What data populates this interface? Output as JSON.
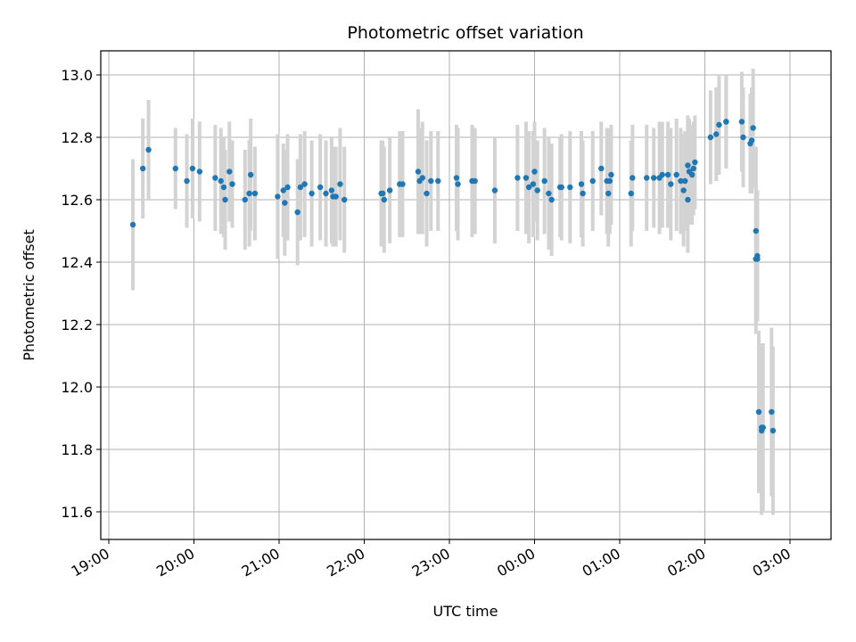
{
  "chart_data": {
    "type": "scatter",
    "title": "Photometric offset variation",
    "xlabel": "UTC time",
    "ylabel": "Photometric offset",
    "x_ticks": [
      "19:00",
      "20:00",
      "21:00",
      "22:00",
      "23:00",
      "00:00",
      "01:00",
      "02:00",
      "03:00"
    ],
    "y_ticks": [
      "11.6",
      "11.8",
      "12.0",
      "12.2",
      "12.4",
      "12.6",
      "12.8",
      "13.0"
    ],
    "ylim": [
      11.51,
      13.08
    ],
    "grid": true,
    "colors": {
      "points": "#1f77b4",
      "errorbars": "#d3d3d3",
      "grid": "#b0b0b0"
    },
    "series": [
      {
        "x": [
          "19:17",
          "19:24",
          "19:28",
          "19:47",
          "19:55",
          "19:59",
          "20:04",
          "20:15",
          "20:19",
          "20:21",
          "20:22",
          "20:25",
          "20:27",
          "20:36",
          "20:39",
          "20:40",
          "20:43",
          "20:59",
          "21:03",
          "21:04",
          "21:06",
          "21:13",
          "21:15",
          "21:18",
          "21:23",
          "21:29",
          "21:33",
          "21:37",
          "21:38",
          "21:40",
          "21:43",
          "21:46",
          "22:12",
          "22:13",
          "22:14",
          "22:18",
          "22:25",
          "22:27",
          "22:38",
          "22:39",
          "22:41",
          "22:44",
          "22:47",
          "22:52",
          "23:05",
          "23:06",
          "23:16",
          "23:18",
          "23:32",
          "23:48",
          "23:54",
          "23:56",
          "23:59",
          "00:00",
          "00:02",
          "00:07",
          "00:10",
          "00:12",
          "00:18",
          "00:19",
          "00:25",
          "00:33",
          "00:34",
          "00:41",
          "00:47",
          "00:51",
          "00:52",
          "00:53",
          "00:54",
          "01:08",
          "01:09",
          "01:19",
          "01:24",
          "01:28",
          "01:30",
          "01:34",
          "01:36",
          "01:40",
          "01:43",
          "01:45",
          "01:46",
          "01:48",
          "01:48",
          "01:49",
          "01:51",
          "01:52",
          "01:53",
          "02:04",
          "02:08",
          "02:10",
          "02:15",
          "02:15",
          "02:26",
          "02:27",
          "02:32",
          "02:33",
          "02:34",
          "02:36",
          "02:36",
          "02:36",
          "02:37",
          "02:37",
          "02:38",
          "02:40",
          "02:40",
          "02:41",
          "02:47",
          "02:48"
        ],
        "y": [
          12.52,
          12.7,
          12.76,
          12.7,
          12.66,
          12.7,
          12.69,
          12.67,
          12.66,
          12.64,
          12.6,
          12.69,
          12.65,
          12.6,
          12.62,
          12.68,
          12.62,
          12.61,
          12.63,
          12.59,
          12.64,
          12.56,
          12.64,
          12.65,
          12.62,
          12.64,
          12.62,
          12.63,
          12.61,
          12.61,
          12.65,
          12.6,
          12.62,
          12.62,
          12.6,
          12.63,
          12.65,
          12.65,
          12.69,
          12.66,
          12.67,
          12.62,
          12.66,
          12.66,
          12.67,
          12.65,
          12.66,
          12.66,
          12.63,
          12.67,
          12.67,
          12.64,
          12.65,
          12.69,
          12.63,
          12.66,
          12.62,
          12.6,
          12.64,
          12.64,
          12.64,
          12.65,
          12.62,
          12.66,
          12.7,
          12.66,
          12.62,
          12.66,
          12.68,
          12.62,
          12.67,
          12.67,
          12.67,
          12.67,
          12.68,
          12.68,
          12.65,
          12.68,
          12.66,
          12.63,
          12.66,
          12.6,
          12.71,
          12.69,
          12.68,
          12.7,
          12.72,
          12.8,
          12.81,
          12.84,
          12.85,
          12.85,
          12.85,
          12.8,
          12.78,
          12.79,
          12.83,
          12.5,
          12.41,
          12.41,
          12.42,
          12.41,
          11.92,
          11.86,
          11.87,
          11.87,
          11.92,
          11.86
        ],
        "err": [
          0.21,
          0.16,
          0.16,
          0.13,
          0.15,
          0.16,
          0.16,
          0.17,
          0.17,
          0.16,
          0.16,
          0.16,
          0.14,
          0.16,
          0.17,
          0.18,
          0.15,
          0.2,
          0.15,
          0.17,
          0.17,
          0.17,
          0.17,
          0.17,
          0.17,
          0.17,
          0.17,
          0.17,
          0.16,
          0.16,
          0.18,
          0.17,
          0.17,
          0.17,
          0.17,
          0.17,
          0.17,
          0.17,
          0.2,
          0.17,
          0.18,
          0.17,
          0.16,
          0.16,
          0.17,
          0.18,
          0.18,
          0.17,
          0.17,
          0.17,
          0.18,
          0.18,
          0.17,
          0.16,
          0.16,
          0.17,
          0.18,
          0.18,
          0.16,
          0.17,
          0.18,
          0.17,
          0.17,
          0.16,
          0.15,
          0.17,
          0.17,
          0.17,
          0.16,
          0.17,
          0.17,
          0.17,
          0.16,
          0.18,
          0.17,
          0.17,
          0.18,
          0.18,
          0.17,
          0.18,
          0.16,
          0.17,
          0.16,
          0.17,
          0.16,
          0.15,
          0.15,
          0.15,
          0.15,
          0.16,
          0.15,
          0.15,
          0.16,
          0.16,
          0.16,
          0.17,
          0.19,
          0.27,
          0.24,
          0.21,
          0.21,
          0.19,
          0.26,
          0.27,
          0.27,
          0.27,
          0.27,
          0.27
        ]
      }
    ]
  }
}
